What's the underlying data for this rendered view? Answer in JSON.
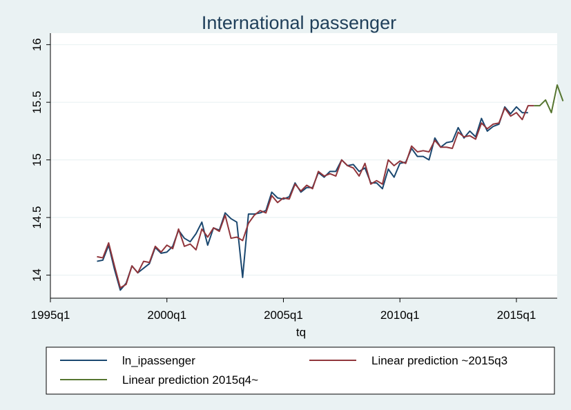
{
  "chart_data": {
    "type": "line",
    "title": "International passenger",
    "xlabel": "tq",
    "ylabel": "",
    "xlim": [
      "1995q1",
      "2016q4"
    ],
    "ylim": [
      13.8,
      16.1
    ],
    "x_ticks": [
      "1995q1",
      "2000q1",
      "2005q1",
      "2010q1",
      "2015q1"
    ],
    "y_ticks": [
      "14",
      "14.5",
      "15",
      "15.5",
      "16"
    ],
    "grid": true,
    "legend_position": "bottom",
    "colors": {
      "background": "#eaf2f3",
      "plot_background": "#ffffff",
      "ln_ipassenger": "#1a476f",
      "pred_in": "#90353b",
      "pred_out": "#55752f",
      "grid": "#eaf2f3",
      "title": "#1f3f5a"
    },
    "start_quarter": "1997q1",
    "series": [
      {
        "name": "ln_ipassenger",
        "color_key": "ln_ipassenger",
        "start": "1997q1",
        "values": [
          14.12,
          14.13,
          14.26,
          14.05,
          13.87,
          13.93,
          14.08,
          14.02,
          14.06,
          14.1,
          14.24,
          14.19,
          14.2,
          14.25,
          14.39,
          14.32,
          14.29,
          14.36,
          14.46,
          14.26,
          14.41,
          14.39,
          14.54,
          14.49,
          14.46,
          13.98,
          14.53,
          14.53,
          14.54,
          14.56,
          14.72,
          14.67,
          14.66,
          14.68,
          14.8,
          14.72,
          14.76,
          14.76,
          14.89,
          14.85,
          14.9,
          14.9,
          15.0,
          14.95,
          14.96,
          14.9,
          14.93,
          14.8,
          14.8,
          14.75,
          14.92,
          14.85,
          14.97,
          14.98,
          15.1,
          15.03,
          15.03,
          15.0,
          15.19,
          15.11,
          15.15,
          15.16,
          15.28,
          15.19,
          15.25,
          15.2,
          15.36,
          15.25,
          15.29,
          15.31,
          15.46,
          15.4,
          15.46,
          15.41,
          15.41
        ]
      },
      {
        "name": "Linear prediction ~2015q3",
        "color_key": "pred_in",
        "start": "1997q1",
        "values": [
          14.16,
          14.15,
          14.28,
          14.08,
          13.89,
          13.92,
          14.08,
          14.02,
          14.12,
          14.11,
          14.25,
          14.2,
          14.26,
          14.23,
          14.4,
          14.25,
          14.27,
          14.22,
          14.4,
          14.33,
          14.41,
          14.38,
          14.52,
          14.32,
          14.33,
          14.3,
          14.45,
          14.52,
          14.56,
          14.54,
          14.69,
          14.63,
          14.67,
          14.66,
          14.79,
          14.73,
          14.78,
          14.75,
          14.9,
          14.86,
          14.88,
          14.86,
          15.0,
          14.95,
          14.93,
          14.86,
          14.97,
          14.79,
          14.82,
          14.79,
          15.0,
          14.95,
          14.99,
          14.97,
          15.12,
          15.07,
          15.08,
          15.07,
          15.17,
          15.11,
          15.11,
          15.1,
          15.24,
          15.2,
          15.21,
          15.18,
          15.32,
          15.27,
          15.31,
          15.32,
          15.45,
          15.38,
          15.41,
          15.35,
          15.47,
          15.47
        ]
      },
      {
        "name": "Linear prediction 2015q4~",
        "color_key": "pred_out",
        "start": "2015q4",
        "values": [
          15.47,
          15.47,
          15.52,
          15.41,
          15.65,
          15.51
        ]
      }
    ]
  }
}
